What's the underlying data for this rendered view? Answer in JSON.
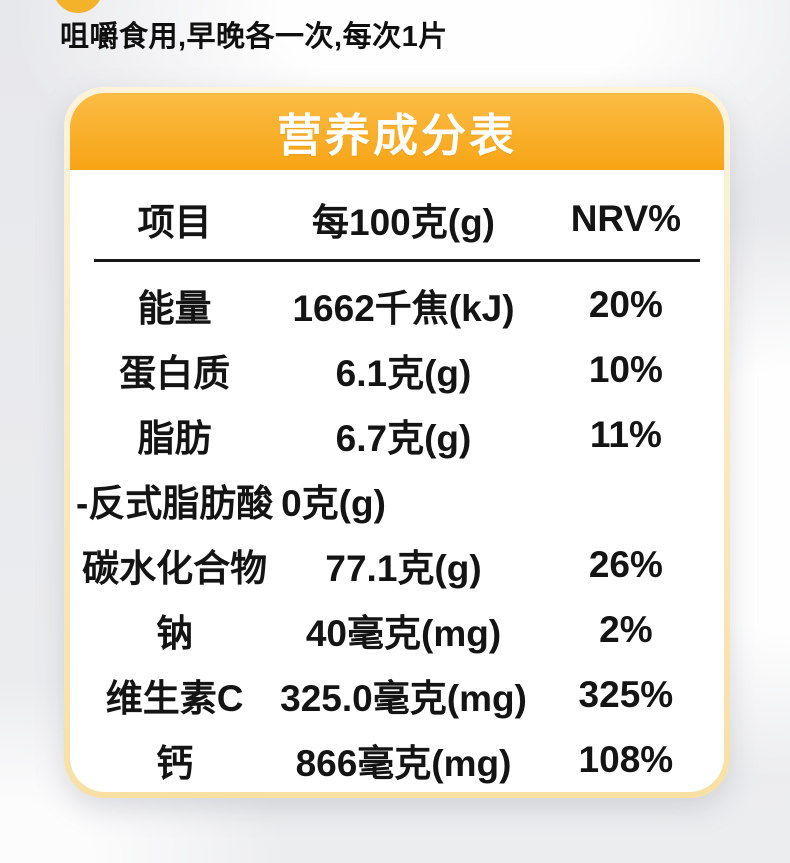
{
  "page": {
    "instruction": "咀嚼食用,早晚各一次,每次1片"
  },
  "nutrition_card": {
    "title": "营养成分表",
    "columns": [
      "项目",
      "每100克(g)",
      "NRV%"
    ],
    "rows": [
      {
        "item": "能量",
        "per_100g": "1662千焦(kJ)",
        "nrv": "20%"
      },
      {
        "item": "蛋白质",
        "per_100g": "6.1克(g)",
        "nrv": "10%"
      },
      {
        "item": "脂肪",
        "per_100g": "6.7克(g)",
        "nrv": "11%"
      },
      {
        "item": "-反式脂肪酸",
        "per_100g": "0克(g)",
        "nrv": ""
      },
      {
        "item": "碳水化合物",
        "per_100g": "77.1克(g)",
        "nrv": "26%"
      },
      {
        "item": "钠",
        "per_100g": "40毫克(mg)",
        "nrv": "2%"
      },
      {
        "item": "维生素C",
        "per_100g": "325.0毫克(mg)",
        "nrv": "325%"
      },
      {
        "item": "钙",
        "per_100g": "866毫克(mg)",
        "nrv": "108%"
      }
    ]
  },
  "colors": {
    "header_gradient_top": "#FBBC45",
    "header_gradient_bottom": "#F7A415",
    "card_border_top": "#FDF3DB",
    "card_border_bottom": "#F8DFA4",
    "bullet_dot": "#F3B229",
    "title_text": "#FFFFFF",
    "body_text": "#141414",
    "page_background": "#E8E9EC"
  }
}
